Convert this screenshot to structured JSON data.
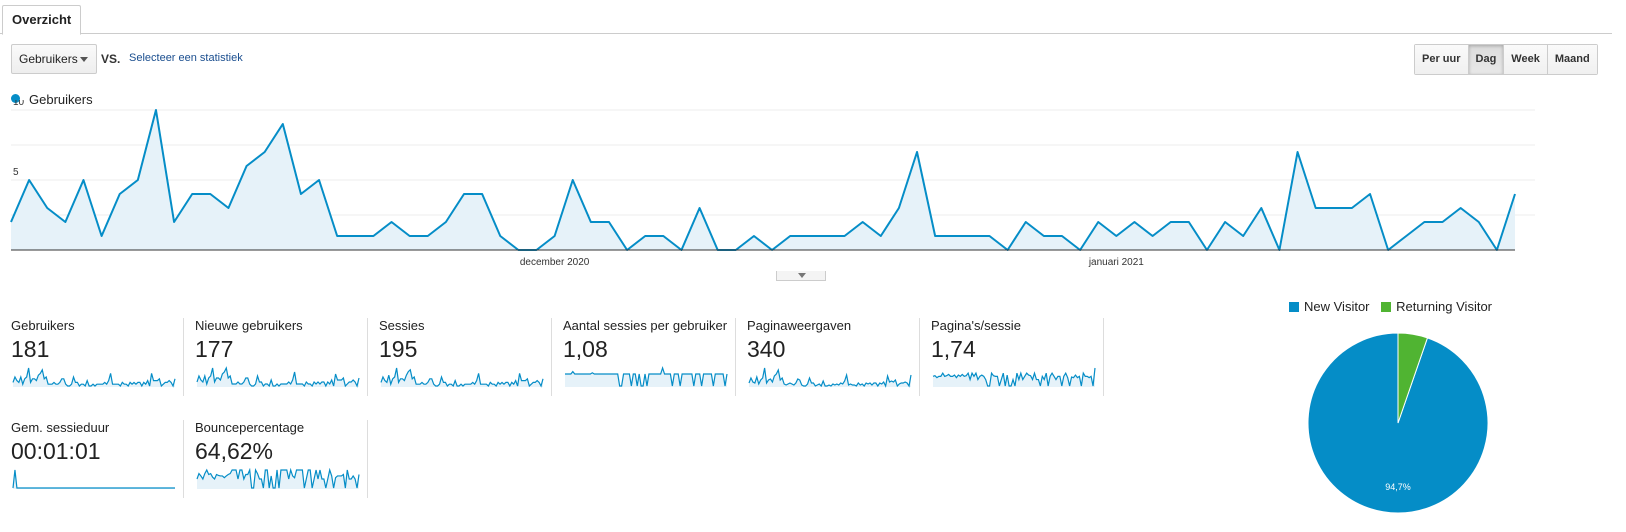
{
  "tabs": {
    "active_label": "Overzicht"
  },
  "toolbar": {
    "metric_select": "Gebruikers",
    "vs_label": "VS.",
    "compare_link": "Selecteer een statistiek",
    "granularity": [
      {
        "label": "Per uur",
        "active": false
      },
      {
        "label": "Dag",
        "active": true
      },
      {
        "label": "Week",
        "active": false
      },
      {
        "label": "Maand",
        "active": false
      }
    ]
  },
  "colors": {
    "series": "#058dc7",
    "new_visitor": "#058dc7",
    "returning_visitor": "#50b432"
  },
  "chart_data": [
    {
      "type": "area",
      "series": [
        {
          "name": "Gebruikers",
          "values": [
            2,
            5,
            3,
            2,
            5,
            1,
            4,
            5,
            10,
            2,
            4,
            4,
            3,
            6,
            7,
            9,
            4,
            5,
            1,
            1,
            1,
            2,
            1,
            1,
            2,
            4,
            4,
            1,
            0,
            0,
            1,
            5,
            2,
            2,
            0,
            1,
            1,
            0,
            3,
            0,
            0,
            1,
            0,
            1,
            1,
            1,
            1,
            2,
            1,
            3,
            7,
            1,
            1,
            1,
            1,
            0,
            2,
            1,
            1,
            0,
            2,
            1,
            2,
            1,
            2,
            2,
            0,
            2,
            1,
            3,
            0,
            7,
            3,
            3,
            3,
            4,
            0,
            1,
            2,
            2,
            3,
            2,
            0,
            4
          ]
        }
      ],
      "yticks": [
        "5",
        "10"
      ],
      "ylim": [
        0,
        10
      ],
      "xtick_labels": [
        {
          "label": "december 2020",
          "index": 30
        },
        {
          "label": "januari 2021",
          "index": 61
        }
      ],
      "legend": "top-left"
    },
    {
      "type": "pie",
      "slices": [
        {
          "label": "New Visitor",
          "value": 94.7
        },
        {
          "label": "Returning Visitor",
          "value": 5.3
        }
      ],
      "data_labels": [
        "94,7%"
      ],
      "legend": "top"
    }
  ],
  "scorecards": [
    {
      "label": "Gebruikers",
      "value": "181",
      "spark": [
        2,
        5,
        3,
        2,
        5,
        1,
        4,
        5,
        10,
        2,
        4,
        4,
        3,
        6,
        7,
        9,
        4,
        5,
        1,
        1,
        1,
        2,
        1,
        1,
        2,
        4,
        4,
        1,
        0,
        0,
        1,
        5,
        2,
        2,
        0,
        1,
        1,
        0,
        3,
        0,
        0,
        1,
        0,
        1,
        1,
        1,
        1,
        2,
        1,
        3,
        7,
        1,
        1,
        1,
        1,
        0,
        2,
        1,
        1,
        0,
        2,
        1,
        2,
        1,
        2,
        2,
        0,
        2,
        1,
        3,
        0,
        7,
        3,
        3,
        3,
        4,
        0,
        1,
        2,
        2,
        3,
        2,
        0,
        4
      ]
    },
    {
      "label": "Nieuwe gebruikers",
      "value": "177",
      "spark": [
        2,
        5,
        3,
        2,
        5,
        1,
        4,
        5,
        9,
        2,
        4,
        4,
        3,
        6,
        7,
        9,
        4,
        5,
        1,
        1,
        1,
        2,
        1,
        1,
        2,
        4,
        4,
        1,
        0,
        0,
        1,
        5,
        2,
        2,
        0,
        1,
        1,
        0,
        3,
        0,
        0,
        1,
        0,
        1,
        1,
        1,
        1,
        2,
        1,
        3,
        7,
        1,
        1,
        1,
        1,
        0,
        2,
        1,
        1,
        0,
        2,
        1,
        2,
        1,
        2,
        2,
        0,
        2,
        1,
        3,
        0,
        6,
        3,
        3,
        3,
        4,
        0,
        1,
        2,
        2,
        3,
        2,
        0,
        4
      ]
    },
    {
      "label": "Sessies",
      "value": "195",
      "spark": [
        2,
        5,
        3,
        2,
        6,
        1,
        4,
        5,
        10,
        2,
        4,
        4,
        3,
        6,
        8,
        9,
        4,
        5,
        1,
        1,
        1,
        2,
        1,
        1,
        2,
        4,
        4,
        1,
        0,
        0,
        1,
        5,
        2,
        2,
        0,
        1,
        1,
        0,
        3,
        0,
        0,
        1,
        0,
        1,
        1,
        1,
        1,
        2,
        1,
        3,
        7,
        1,
        1,
        1,
        1,
        0,
        2,
        1,
        1,
        0,
        2,
        1,
        2,
        1,
        2,
        2,
        0,
        2,
        1,
        3,
        0,
        7,
        3,
        3,
        3,
        4,
        0,
        1,
        2,
        2,
        3,
        2,
        0,
        4
      ]
    },
    {
      "label": "Aantal sessies per gebruiker",
      "value": "1,08",
      "spark": [
        1,
        1,
        1,
        1,
        1.2,
        1,
        1,
        1,
        1,
        1,
        1,
        1,
        1,
        1,
        1.1,
        1,
        1,
        1,
        1,
        1,
        1,
        1,
        1,
        1,
        1,
        1,
        1,
        1,
        0,
        0,
        1,
        1,
        1,
        1,
        0,
        1,
        1,
        0,
        1,
        0,
        0,
        1,
        0,
        1,
        1,
        1,
        1,
        1,
        1,
        1,
        1.5,
        1,
        1,
        1,
        1,
        0,
        1,
        1,
        1,
        0,
        1,
        1,
        1,
        1,
        1,
        1,
        0,
        1,
        1,
        1,
        0,
        1,
        1,
        1,
        1,
        1,
        0,
        1,
        1,
        1,
        1,
        1,
        0,
        1
      ]
    },
    {
      "label": "Paginaweergaven",
      "value": "340",
      "spark": [
        3,
        8,
        4,
        3,
        9,
        2,
        6,
        8,
        18,
        3,
        6,
        7,
        4,
        10,
        12,
        16,
        6,
        8,
        2,
        1,
        2,
        3,
        2,
        1,
        3,
        7,
        6,
        1,
        0,
        0,
        2,
        8,
        3,
        3,
        0,
        1,
        2,
        0,
        5,
        0,
        0,
        1,
        0,
        2,
        1,
        2,
        1,
        3,
        2,
        5,
        11,
        1,
        2,
        1,
        1,
        0,
        3,
        1,
        2,
        0,
        3,
        2,
        3,
        1,
        3,
        3,
        0,
        3,
        2,
        4,
        0,
        10,
        4,
        5,
        4,
        6,
        0,
        2,
        3,
        3,
        4,
        3,
        0,
        11
      ]
    },
    {
      "label": "Pagina's/sessie",
      "value": "1,74",
      "spark": [
        1.5,
        1.6,
        1.3,
        1.5,
        1.5,
        2,
        1.5,
        1.6,
        1.8,
        1.5,
        1.5,
        1.7,
        1.3,
        1.7,
        1.5,
        1.8,
        1.5,
        1.6,
        2,
        1,
        2,
        1.5,
        2,
        1,
        1.5,
        1.7,
        1.5,
        1,
        0,
        0,
        2,
        1.6,
        1.5,
        1.5,
        0,
        1,
        2,
        0,
        1.7,
        0,
        0,
        1,
        0,
        2,
        1,
        2,
        1,
        1.5,
        2,
        1.7,
        1.6,
        1,
        2,
        1,
        1,
        0,
        1.5,
        1,
        2,
        0,
        1.5,
        2,
        1.5,
        1,
        1.5,
        1.5,
        0,
        1.5,
        2,
        1.3,
        0,
        1.4,
        1.3,
        1.7,
        1.3,
        1.5,
        0,
        2,
        1.5,
        1.5,
        1.3,
        1.5,
        0,
        2.8
      ]
    },
    {
      "label": "Gem. sessieduur",
      "value": "00:01:01",
      "spark": [
        0,
        1,
        0,
        0,
        0,
        0,
        0,
        0,
        0,
        0,
        0,
        0,
        0,
        0,
        0,
        0,
        0,
        0,
        0,
        0,
        0,
        0,
        0,
        0,
        0,
        0,
        0,
        0,
        0,
        0,
        0,
        0,
        0,
        0,
        0,
        0,
        0,
        0,
        0,
        0,
        0,
        0,
        0,
        0,
        0,
        0,
        0,
        0,
        0,
        0,
        0,
        0,
        0,
        0,
        0,
        0,
        0,
        0,
        0,
        0,
        0,
        0,
        0,
        0,
        0,
        0,
        0,
        0,
        0,
        0,
        0,
        0,
        0,
        0,
        0,
        0,
        0,
        0,
        0,
        0,
        0,
        0,
        0,
        0
      ]
    },
    {
      "label": "Bouncepercentage",
      "value": "64,62%",
      "spark": [
        50,
        80,
        67,
        50,
        80,
        100,
        75,
        80,
        60,
        50,
        75,
        70,
        67,
        67,
        57,
        67,
        75,
        80,
        100,
        100,
        100,
        50,
        100,
        100,
        50,
        75,
        75,
        100,
        0,
        0,
        100,
        80,
        50,
        50,
        0,
        100,
        100,
        0,
        67,
        0,
        0,
        100,
        0,
        100,
        100,
        100,
        100,
        50,
        100,
        67,
        57,
        100,
        100,
        100,
        100,
        0,
        50,
        100,
        100,
        0,
        50,
        100,
        50,
        100,
        50,
        50,
        0,
        50,
        100,
        67,
        0,
        57,
        67,
        67,
        67,
        75,
        0,
        100,
        50,
        50,
        67,
        50,
        0,
        75
      ]
    }
  ]
}
